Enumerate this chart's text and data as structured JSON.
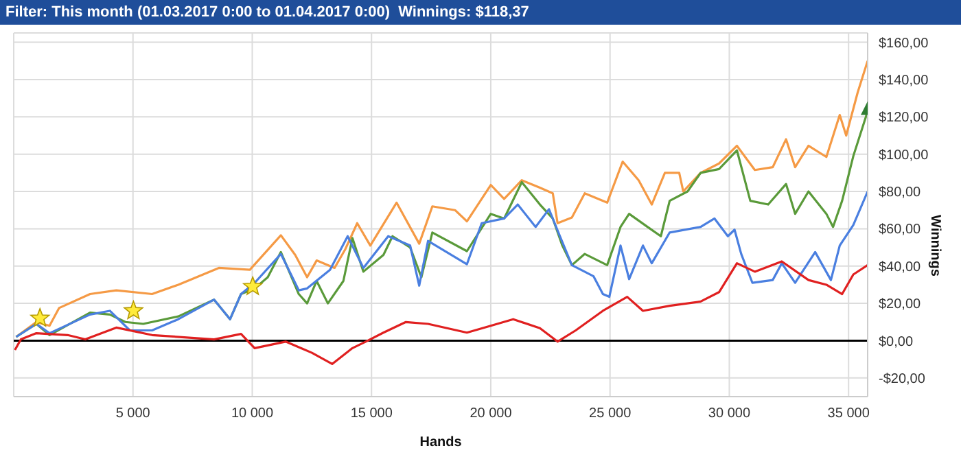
{
  "chart_data": {
    "type": "line",
    "title": "Filter: This month (01.03.2017 0:00 to 01.04.2017 0:00)  Winnings: $118,37",
    "xlabel": "Hands",
    "ylabel": "Winnings",
    "xlim": [
      0,
      35800
    ],
    "ylim": [
      -30,
      165
    ],
    "xticks": [
      {
        "value": 5000,
        "label": "5 000"
      },
      {
        "value": 10000,
        "label": "10 000"
      },
      {
        "value": 15000,
        "label": "15 000"
      },
      {
        "value": 20000,
        "label": "20 000"
      },
      {
        "value": 25000,
        "label": "25 000"
      },
      {
        "value": 30000,
        "label": "30 000"
      },
      {
        "value": 35000,
        "label": "35 000"
      }
    ],
    "yticks": [
      {
        "value": -20,
        "label": "-$20,00"
      },
      {
        "value": 0,
        "label": "$0,00"
      },
      {
        "value": 20,
        "label": "$20,00"
      },
      {
        "value": 40,
        "label": "$40,00"
      },
      {
        "value": 60,
        "label": "$60,00"
      },
      {
        "value": 80,
        "label": "$80,00"
      },
      {
        "value": 100,
        "label": "$100,00"
      },
      {
        "value": 120,
        "label": "$120,00"
      },
      {
        "value": 140,
        "label": "$140,00"
      },
      {
        "value": 160,
        "label": "$160,00"
      }
    ],
    "grid": true,
    "marker": "none",
    "line_style": "solid",
    "ref_lines": [
      {
        "axis": "y",
        "value": 0,
        "color": "#000000"
      }
    ],
    "series": [
      {
        "color": "#f59a45",
        "x": [
          100,
          950,
          1500,
          1900,
          3200,
          4300,
          5800,
          6900,
          8600,
          9900,
          11200,
          11800,
          12300,
          12700,
          13450,
          13900,
          14400,
          14950,
          16050,
          17000,
          17550,
          18500,
          19000,
          20000,
          20560,
          21300,
          22060,
          22600,
          22800,
          23400,
          23940,
          24880,
          25530,
          26200,
          26750,
          27300,
          27900,
          28070,
          28800,
          29570,
          30320,
          31070,
          31820,
          32380,
          32760,
          33320,
          34070,
          34630,
          34900,
          35380,
          35800
        ],
        "values": [
          2,
          10,
          8,
          17.5,
          25,
          27,
          25,
          30,
          39,
          38,
          56.5,
          46,
          34,
          43,
          39,
          49,
          63,
          51,
          74,
          52,
          72,
          70,
          64,
          83.5,
          76,
          86,
          82,
          79,
          63,
          66,
          79,
          74,
          96,
          86,
          73,
          90,
          90,
          80,
          90,
          95,
          104.5,
          91.5,
          93,
          108,
          93,
          104.5,
          98.5,
          121,
          110,
          133,
          150
        ]
      },
      {
        "color": "#5a9a3a",
        "x": [
          100,
          950,
          1500,
          3200,
          4030,
          4680,
          5430,
          6900,
          8400,
          9070,
          9530,
          10100,
          10650,
          11200,
          11950,
          12300,
          12700,
          13170,
          13820,
          14200,
          14660,
          15500,
          15880,
          16620,
          17090,
          17550,
          19000,
          20000,
          20560,
          21300,
          22060,
          22600,
          23000,
          23400,
          23940,
          24880,
          25440,
          25800,
          26570,
          27130,
          27500,
          28250,
          28800,
          29570,
          30320,
          30880,
          31630,
          32380,
          32760,
          33320,
          34070,
          34350,
          34730,
          35200,
          35800
        ],
        "values": [
          2,
          9,
          3,
          15,
          14,
          10,
          9,
          13,
          22,
          11.5,
          25,
          28,
          34,
          47.5,
          25,
          20,
          32,
          20,
          32,
          55,
          37,
          46,
          56,
          50,
          34,
          58,
          48,
          68,
          65.5,
          85,
          73,
          65.5,
          51,
          40.5,
          46.5,
          40.5,
          61,
          68,
          61,
          56,
          75,
          80,
          90,
          92,
          102,
          75,
          73,
          84,
          68,
          80,
          68,
          61,
          75,
          99,
          123
        ]
      },
      {
        "color": "#4a7fe0",
        "x": [
          100,
          950,
          1500,
          3200,
          4030,
          4870,
          5800,
          6900,
          8400,
          9070,
          9530,
          10100,
          11200,
          11950,
          12300,
          13260,
          14000,
          14660,
          15700,
          16620,
          17000,
          17370,
          19000,
          19620,
          20560,
          21130,
          21880,
          22440,
          22900,
          23400,
          24310,
          24700,
          24970,
          25440,
          25800,
          26380,
          26750,
          27500,
          28800,
          29380,
          29940,
          30220,
          30500,
          30970,
          31820,
          32200,
          32760,
          33600,
          34260,
          34630,
          35200,
          35800
        ],
        "values": [
          2,
          9,
          4,
          14,
          16,
          5.5,
          5.5,
          11.5,
          22,
          11.5,
          25,
          31,
          46.5,
          27,
          28,
          38,
          56,
          39,
          56,
          51,
          29.5,
          53.5,
          41,
          63,
          65.5,
          73,
          61,
          70.5,
          56,
          40.5,
          34.5,
          25,
          23.5,
          51,
          33,
          51,
          41.5,
          58,
          61,
          65.5,
          56,
          59.5,
          46.5,
          31,
          32.5,
          41.5,
          31,
          47.5,
          32.5,
          51,
          62,
          80
        ]
      },
      {
        "color": "#e02020",
        "x": [
          50,
          300,
          950,
          2260,
          3000,
          4300,
          5800,
          8400,
          9530,
          10100,
          11400,
          12500,
          13350,
          14200,
          14760,
          15500,
          16440,
          17370,
          19000,
          20000,
          20940,
          22060,
          22800,
          23560,
          24700,
          25720,
          26380,
          27500,
          28800,
          29570,
          30320,
          31070,
          32200,
          33320,
          34070,
          34730,
          35200,
          35800
        ],
        "values": [
          -5,
          0.7,
          4,
          3,
          0.7,
          7,
          3,
          0.7,
          3.6,
          -4,
          -0.5,
          -6.5,
          -12.5,
          -4,
          -0.5,
          4.3,
          10,
          9,
          4.3,
          8,
          11.5,
          6.7,
          -0.5,
          5.5,
          16,
          23.5,
          16,
          18.7,
          21,
          26,
          41.5,
          37,
          42.5,
          32.5,
          30,
          25,
          35.5,
          40.5
        ]
      },
      {
        "type": "scatter",
        "color": "#ffeb3b",
        "marker": "star",
        "x": [
          1100,
          5020,
          10020
        ],
        "values": [
          12,
          16,
          29
        ]
      },
      {
        "type": "scatter",
        "color": "#2e7d32",
        "marker": "triangle",
        "x": [
          35800
        ],
        "values": [
          124
        ]
      }
    ]
  }
}
